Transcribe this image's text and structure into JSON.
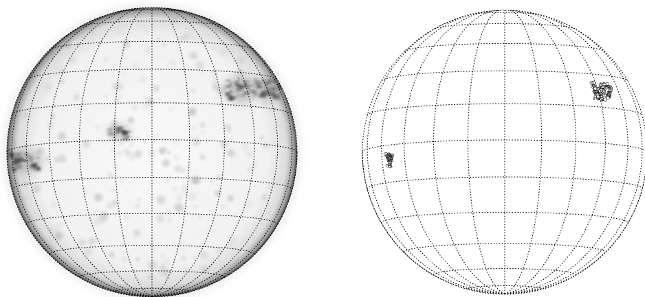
{
  "panels": [
    {
      "id": "left",
      "kind": "full-disk-inverted-greyscale",
      "features": [
        {
          "name": "active-region-northwest",
          "lon_deg": 42,
          "lat_deg": 22,
          "intensity": 0.95
        },
        {
          "name": "active-region-far-northwest",
          "lon_deg": 65,
          "lat_deg": 24,
          "intensity": 0.75
        },
        {
          "name": "active-region-east",
          "lon_deg": -62,
          "lat_deg": -6,
          "intensity": 0.85
        },
        {
          "name": "small-spot-center",
          "lon_deg": -13,
          "lat_deg": 3,
          "intensity": 0.35
        }
      ]
    },
    {
      "id": "right",
      "kind": "full-disk-contour-map",
      "features": [
        {
          "name": "contour-cluster-northwest",
          "lon_deg": 47,
          "lat_deg": 22
        },
        {
          "name": "contour-cluster-east",
          "lon_deg": -55,
          "lat_deg": -6
        }
      ]
    }
  ],
  "grid": {
    "meridian_step_deg": 15,
    "parallel_step_deg": 15,
    "b0_tilt_deg": -5,
    "line_color": "#000000",
    "disk_fill_left": "#f7f7f7",
    "limb_color": "#555555"
  }
}
